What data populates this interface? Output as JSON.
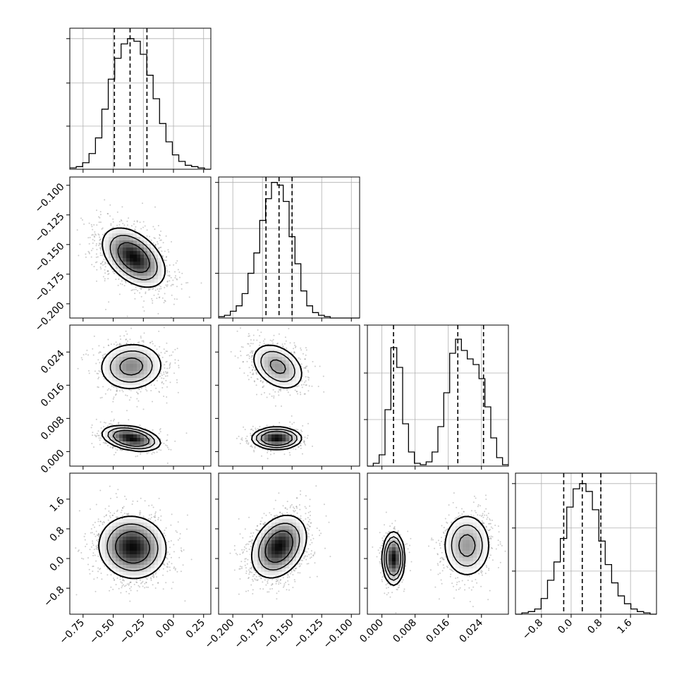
{
  "chart_data": {
    "type": "corner",
    "parameters": [
      {
        "lim": [
          -0.86,
          0.31
        ],
        "ticks": [
          -0.75,
          -0.5,
          -0.25,
          0.0,
          0.25
        ],
        "tick_labels": [
          "−0.75",
          "−0.50",
          "−0.25",
          "0.00",
          "0.25"
        ]
      },
      {
        "lim": [
          -0.212,
          -0.093
        ],
        "ticks": [
          -0.2,
          -0.175,
          -0.15,
          -0.125,
          -0.1
        ],
        "tick_labels": [
          "−0.200",
          "−0.175",
          "−0.150",
          "−0.125",
          "−0.100"
        ]
      },
      {
        "lim": [
          -0.0035,
          0.0305
        ],
        "ticks": [
          0.0,
          0.008,
          0.016,
          0.024
        ],
        "tick_labels": [
          "0.000",
          "0.008",
          "0.016",
          "0.024"
        ]
      },
      {
        "lim": [
          -1.5,
          2.3
        ],
        "ticks": [
          -0.8,
          0.0,
          0.8,
          1.6
        ],
        "tick_labels": [
          "−0.8",
          "0.0",
          "0.8",
          "1.6"
        ]
      }
    ],
    "histograms": [
      {
        "param": 0,
        "bins": [
          -0.86,
          0.31
        ],
        "counts": [
          1,
          2,
          5,
          12,
          24,
          46,
          69,
          85,
          96,
          100,
          98,
          88,
          72,
          54,
          35,
          21,
          11,
          6,
          3,
          2,
          1,
          0
        ],
        "quantiles": [
          -0.49,
          -0.36,
          -0.22
        ],
        "ymax": 108
      },
      {
        "param": 1,
        "bins": [
          -0.212,
          -0.093
        ],
        "counts": [
          1,
          2,
          5,
          9,
          18,
          33,
          48,
          72,
          88,
          100,
          98,
          86,
          60,
          40,
          20,
          9,
          4,
          2,
          1,
          0,
          0,
          0,
          0,
          0
        ],
        "quantiles": [
          -0.172,
          -0.161,
          -0.15
        ],
        "ymax": 104
      },
      {
        "param": 2,
        "bins": [
          -0.0035,
          0.0305
        ],
        "counts": [
          0,
          2,
          8,
          40,
          84,
          70,
          30,
          10,
          2,
          1,
          3,
          10,
          28,
          52,
          80,
          90,
          82,
          76,
          72,
          62,
          42,
          20,
          6,
          1
        ],
        "quantiles": [
          0.0028,
          0.0183,
          0.0245
        ],
        "ymax": 100
      },
      {
        "param": 3,
        "bins": [
          -1.5,
          2.3
        ],
        "counts": [
          0,
          1,
          2,
          4,
          12,
          26,
          40,
          58,
          82,
          96,
          100,
          94,
          80,
          56,
          38,
          24,
          14,
          8,
          4,
          2,
          1,
          0
        ],
        "quantiles": [
          -0.2,
          0.3,
          0.8
        ],
        "ymax": 108
      }
    ],
    "scatter_panels": [
      {
        "x": 0,
        "y": 1,
        "components": [
          {
            "weight": 1,
            "mean": [
              -0.33,
              -0.161
            ],
            "sd": [
              0.13,
              0.0125
            ],
            "corr": -0.45
          }
        ]
      },
      {
        "x": 0,
        "y": 2,
        "components": [
          {
            "weight": 0.55,
            "mean": [
              -0.35,
              0.0205
            ],
            "sd": [
              0.13,
              0.0028
            ],
            "corr": 0.05
          },
          {
            "weight": 0.45,
            "mean": [
              -0.35,
              0.0032
            ],
            "sd": [
              0.11,
              0.0014
            ],
            "corr": -0.35
          }
        ]
      },
      {
        "x": 1,
        "y": 2,
        "components": [
          {
            "weight": 0.55,
            "mean": [
              -0.162,
              0.0205
            ],
            "sd": [
              0.011,
              0.0028
            ],
            "corr": -0.35
          },
          {
            "weight": 0.45,
            "mean": [
              -0.163,
              0.0032
            ],
            "sd": [
              0.0095,
              0.0012
            ],
            "corr": 0.0
          }
        ]
      },
      {
        "x": 0,
        "y": 3,
        "components": [
          {
            "weight": 1,
            "mean": [
              -0.34,
              0.3
            ],
            "sd": [
              0.14,
              0.42
            ],
            "corr": -0.05
          }
        ]
      },
      {
        "x": 1,
        "y": 3,
        "components": [
          {
            "weight": 1,
            "mean": [
              -0.161,
              0.32
            ],
            "sd": [
              0.0115,
              0.42
            ],
            "corr": 0.3
          }
        ]
      },
      {
        "x": 2,
        "y": 3,
        "components": [
          {
            "weight": 0.42,
            "mean": [
              0.0028,
              0.0
            ],
            "sd": [
              0.0012,
              0.32
            ],
            "corr": 0.0
          },
          {
            "weight": 0.58,
            "mean": [
              0.0205,
              0.35
            ],
            "sd": [
              0.0028,
              0.42
            ],
            "corr": 0.0
          }
        ]
      }
    ],
    "grid": true,
    "colors": {
      "line": "#000000",
      "grid": "#b0b0b0",
      "samples": "#6e6e6e"
    }
  }
}
